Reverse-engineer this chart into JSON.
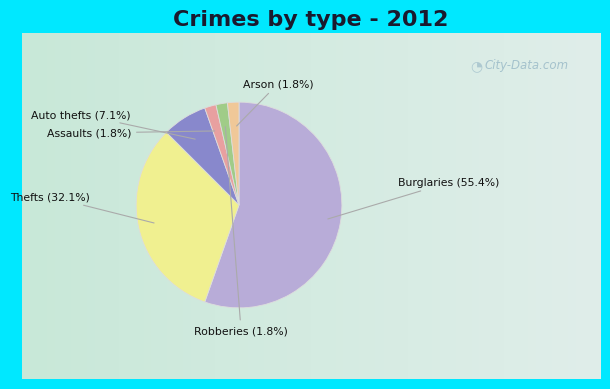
{
  "title": "Crimes by type - 2012",
  "title_fontsize": 16,
  "title_fontweight": "bold",
  "labels_display": [
    "Burglaries (55.4%)",
    "Thefts (32.1%)",
    "Auto thefts (7.1%)",
    "Assaults (1.8%)",
    "Robberies (1.8%)",
    "Arson (1.8%)"
  ],
  "values": [
    55.4,
    32.1,
    7.1,
    1.8,
    1.8,
    1.8
  ],
  "colors": [
    "#b8acd8",
    "#f0f090",
    "#8888cc",
    "#e8a0a0",
    "#a0cc88",
    "#f0c898"
  ],
  "background_border": "#00e8ff",
  "background_main_left": "#c8e8d8",
  "background_main_right": "#e0eeea",
  "watermark": "City-Data.com",
  "fig_width": 6.0,
  "fig_height": 4.0,
  "dpi": 100,
  "startangle": 90,
  "border_thickness": 0.05
}
